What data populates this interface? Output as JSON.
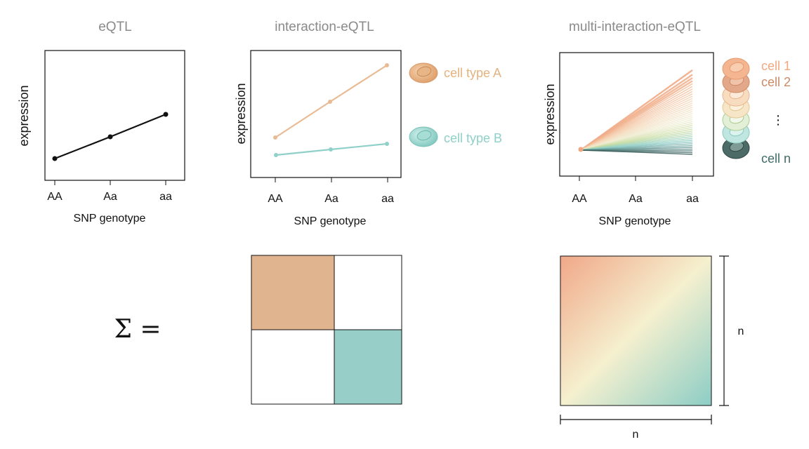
{
  "panels": {
    "eqtl": {
      "title": "eQTL",
      "ylabel": "expression",
      "xlabel": "SNP genotype",
      "ticks": [
        "AA",
        "Aa",
        "aa"
      ]
    },
    "interaction": {
      "title": "interaction-eQTL",
      "ylabel": "expression",
      "xlabel": "SNP genotype",
      "ticks": [
        "AA",
        "Aa",
        "aa"
      ],
      "legend": [
        {
          "label": "cell type A",
          "color": "#e5b27f"
        },
        {
          "label": "cell type B",
          "color": "#8fd0c8"
        }
      ]
    },
    "multi": {
      "title": "multi-interaction-eQTL",
      "ylabel": "expression",
      "xlabel": "SNP genotype",
      "ticks": [
        "AA",
        "Aa",
        "aa"
      ],
      "legend": {
        "first": "cell 1",
        "second": "cell 2",
        "ellipsis": "⋮",
        "last": "cell n"
      }
    }
  },
  "covariance": {
    "sigma_label": "Σ =",
    "dim_label_right": "n",
    "dim_label_bottom": "n",
    "block_colors": {
      "a": "#e0b48f",
      "b": "#97cfc8"
    },
    "gradient_colors": [
      "#f0a888",
      "#f5f0cf",
      "#8ccdc5"
    ]
  },
  "icons": {
    "cell": "cell-icon"
  }
}
